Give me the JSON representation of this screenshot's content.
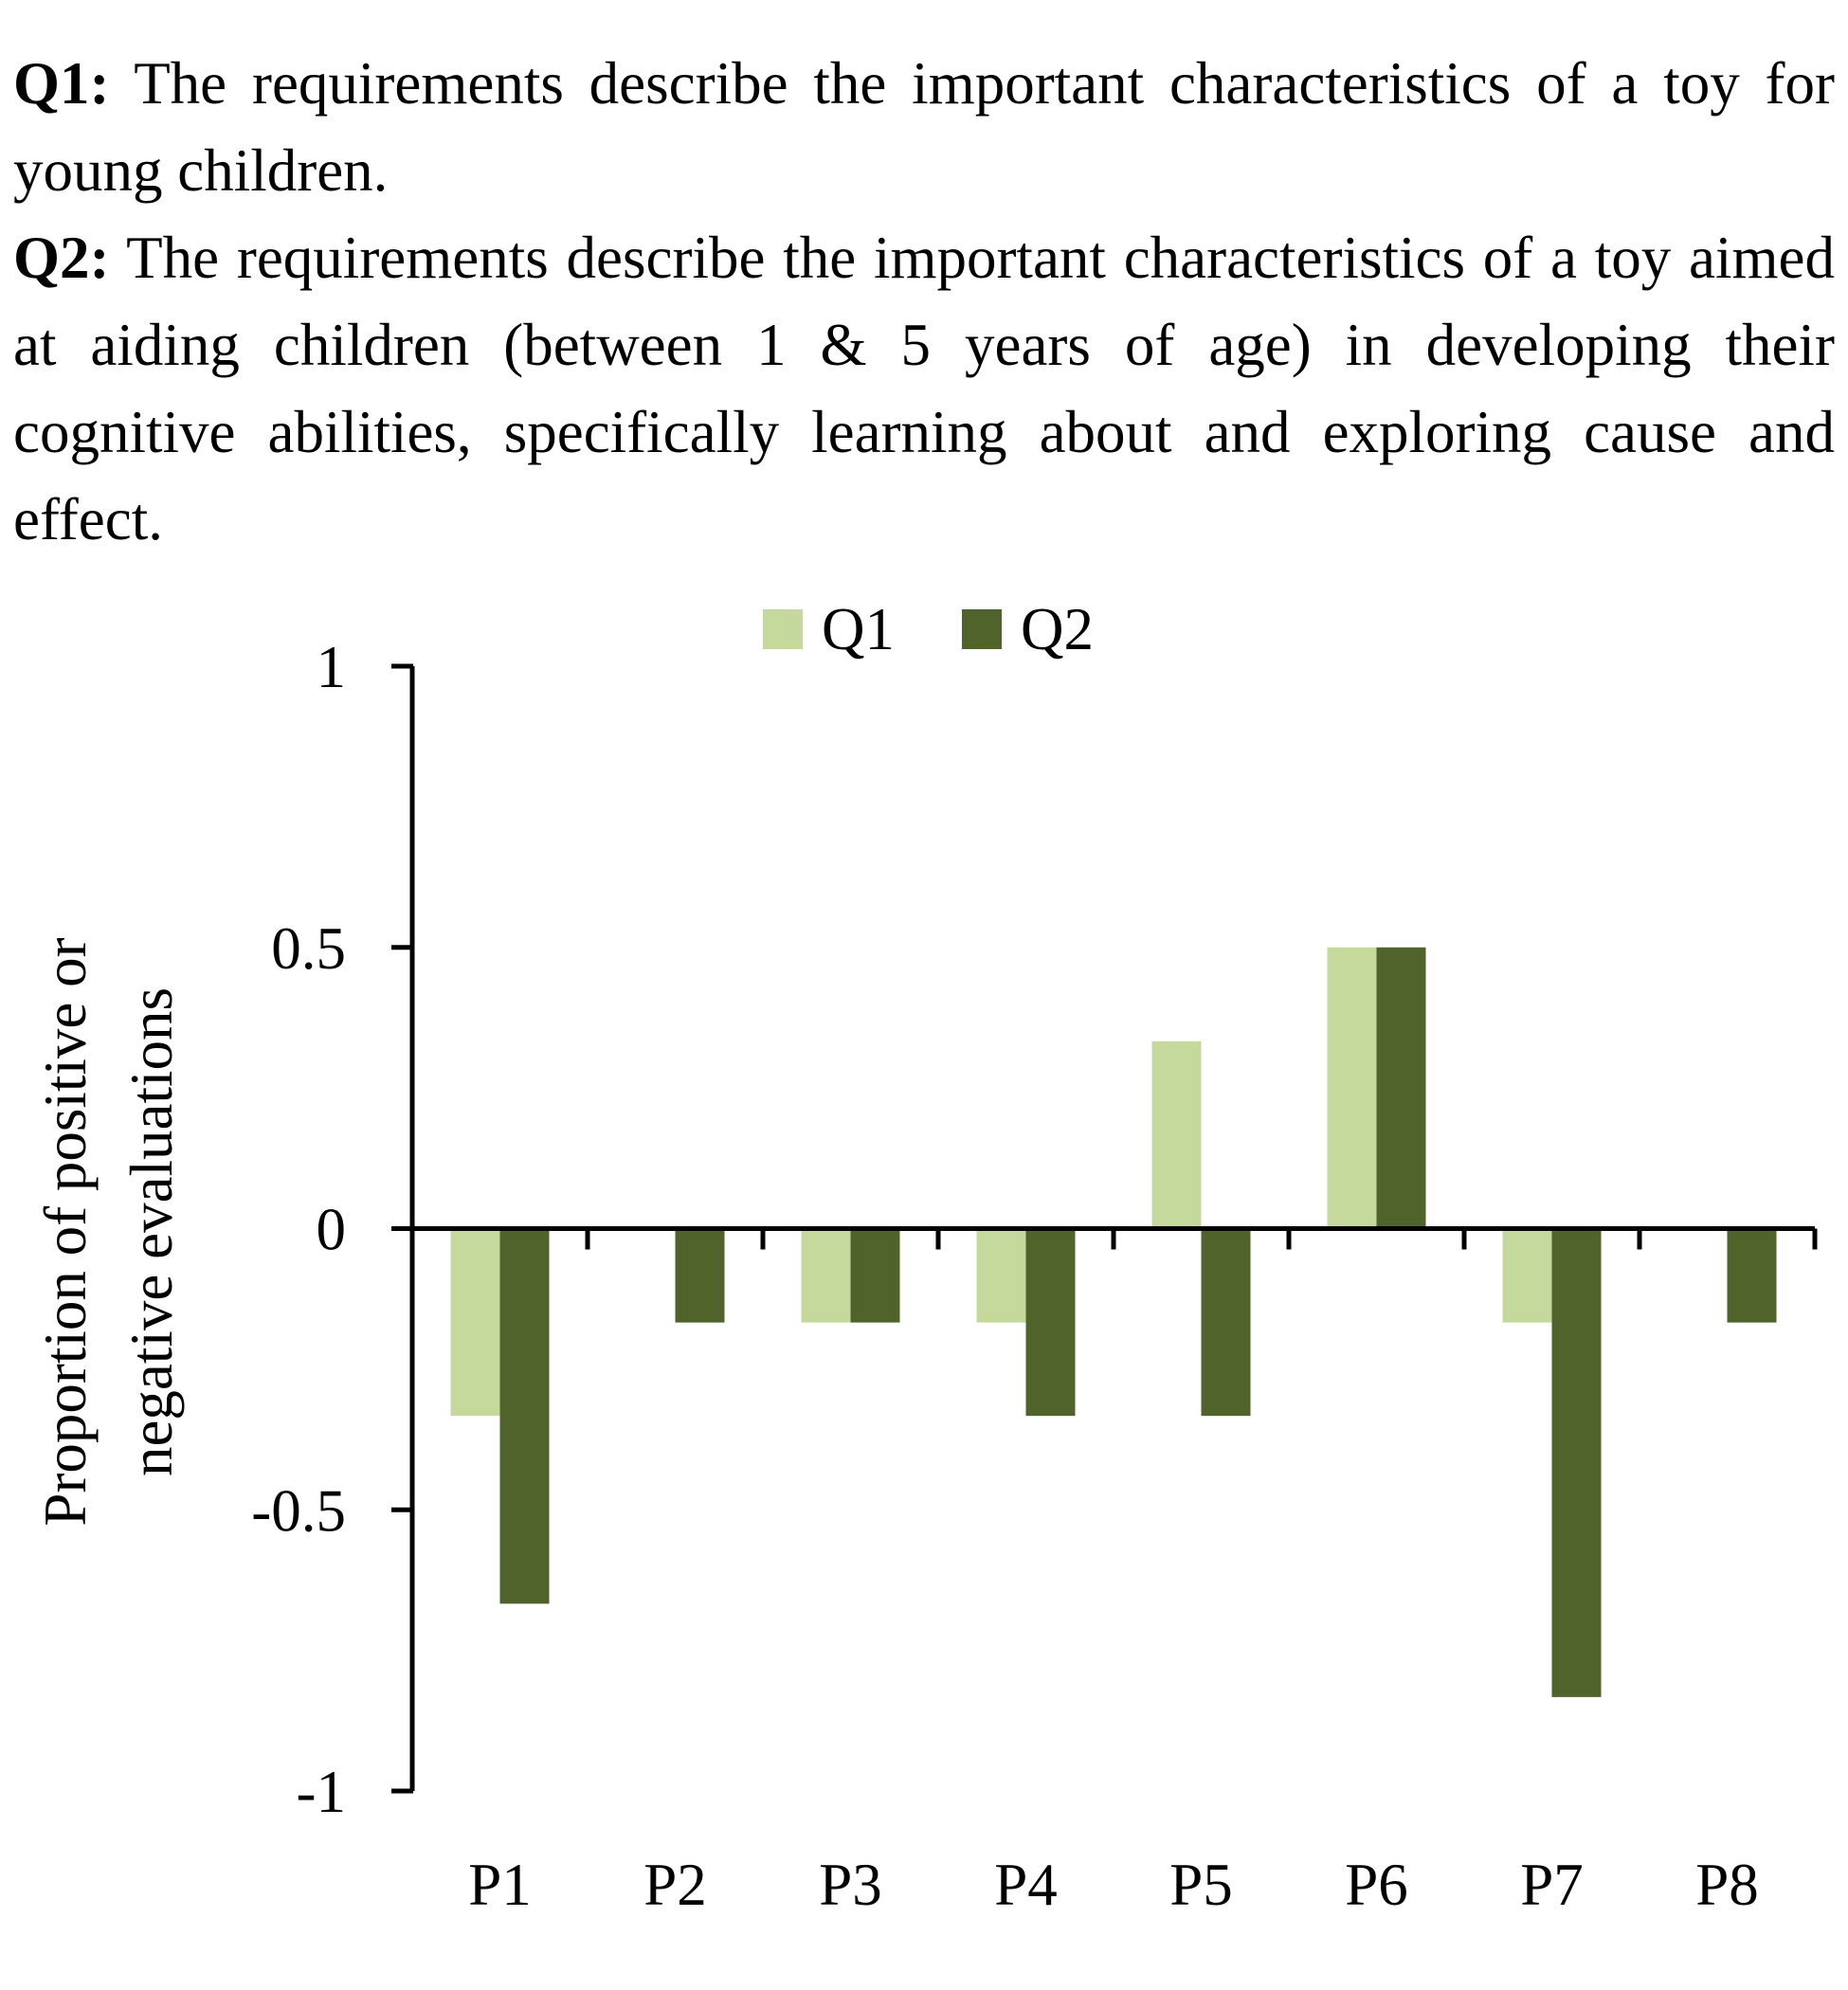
{
  "questions": [
    {
      "label": "Q1:",
      "text": "The requirements describe the important characteristics of a toy for young children."
    },
    {
      "label": "Q2:",
      "text": "The requirements describe the important characteristics of a toy aimed at aiding children (between 1 & 5 years of age) in developing their cognitive abilities, specifically learning about and exploring cause and effect."
    }
  ],
  "chart_data": {
    "type": "bar",
    "title": "",
    "xlabel": "",
    "ylabel": "Proportion of positive or negative evaluations",
    "ylabel_lines": [
      "Proportion of positive or",
      "negative evaluations"
    ],
    "categories": [
      "P1",
      "P2",
      "P3",
      "P4",
      "P5",
      "P6",
      "P7",
      "P8"
    ],
    "series": [
      {
        "name": "Q1",
        "color": "#c5d99c",
        "values": [
          -0.333,
          0,
          -0.167,
          -0.167,
          0.333,
          0.5,
          -0.167,
          0
        ]
      },
      {
        "name": "Q2",
        "color": "#50632b",
        "values": [
          -0.667,
          -0.167,
          -0.167,
          -0.333,
          -0.333,
          0.5,
          -0.833,
          -0.167
        ]
      }
    ],
    "ylim": [
      -1,
      1
    ],
    "yticks": [
      1,
      0.5,
      0,
      -0.5,
      -1
    ],
    "ytick_labels": [
      "1",
      "0.5",
      "0",
      "-0.5",
      "-1"
    ],
    "legend_position": "top-center",
    "grid": false
  }
}
